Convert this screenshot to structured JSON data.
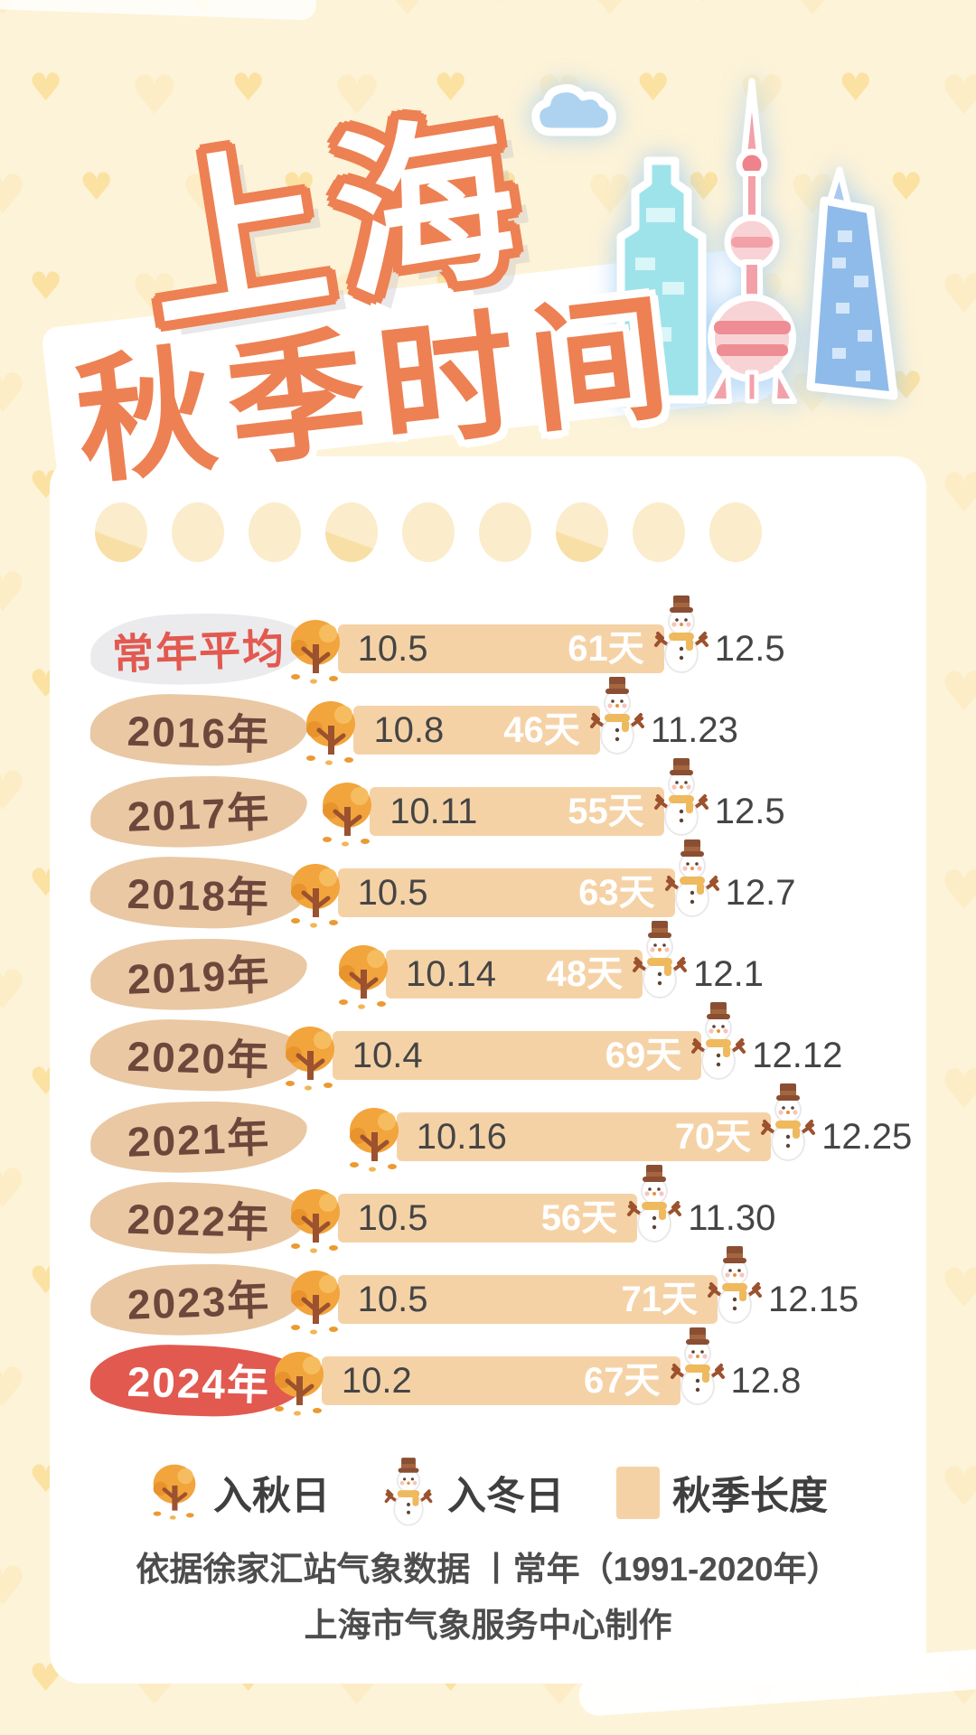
{
  "title": {
    "line1": "上海",
    "line2": "秋季时间"
  },
  "chart_data": {
    "type": "bar",
    "orientation": "horizontal-timeline",
    "date_scale": {
      "unit": "month.day",
      "start": "10.1",
      "end": "12.28"
    },
    "rows": [
      {
        "label": "常年平均",
        "style": "average",
        "autumn_start": "10.5",
        "season_length_days": 61,
        "season_length_label": "61天",
        "winter_start": "12.5"
      },
      {
        "label": "2016年",
        "style": "year",
        "autumn_start": "10.8",
        "season_length_days": 46,
        "season_length_label": "46天",
        "winter_start": "11.23"
      },
      {
        "label": "2017年",
        "style": "year",
        "autumn_start": "10.11",
        "season_length_days": 55,
        "season_length_label": "55天",
        "winter_start": "12.5"
      },
      {
        "label": "2018年",
        "style": "year",
        "autumn_start": "10.5",
        "season_length_days": 63,
        "season_length_label": "63天",
        "winter_start": "12.7"
      },
      {
        "label": "2019年",
        "style": "year",
        "autumn_start": "10.14",
        "season_length_days": 48,
        "season_length_label": "48天",
        "winter_start": "12.1"
      },
      {
        "label": "2020年",
        "style": "year",
        "autumn_start": "10.4",
        "season_length_days": 69,
        "season_length_label": "69天",
        "winter_start": "12.12"
      },
      {
        "label": "2021年",
        "style": "year",
        "autumn_start": "10.16",
        "season_length_days": 70,
        "season_length_label": "70天",
        "winter_start": "12.25"
      },
      {
        "label": "2022年",
        "style": "year",
        "autumn_start": "10.5",
        "season_length_days": 56,
        "season_length_label": "56天",
        "winter_start": "11.30"
      },
      {
        "label": "2023年",
        "style": "year",
        "autumn_start": "10.5",
        "season_length_days": 71,
        "season_length_label": "71天",
        "winter_start": "12.15"
      },
      {
        "label": "2024年",
        "style": "highlight",
        "autumn_start": "10.2",
        "season_length_days": 67,
        "season_length_label": "67天",
        "winter_start": "12.8"
      }
    ]
  },
  "legend": {
    "items": [
      {
        "icon": "autumn-tree-icon",
        "label": "入秋日"
      },
      {
        "icon": "snowman-icon",
        "label": "入冬日"
      },
      {
        "icon": "bar-swatch",
        "label": "秋季长度"
      }
    ]
  },
  "footer": {
    "line1": "依据徐家汇站气象数据 丨常年（1991-2020年）",
    "line2": "上海市气象服务中心制作"
  },
  "colors": {
    "background": "#fdf3d8",
    "heart_dark": "#fbe2a3",
    "heart_light": "#fcedc6",
    "card": "#ffffff",
    "accent_orange": "#ed8153",
    "bar": "#f5d2a6",
    "year_text": "#6e463c",
    "year_badge": "#e9c8a3",
    "average_text": "#e25950",
    "average_badge": "#ebebed",
    "highlight_badge": "#e25950",
    "highlight_text": "#ffffff",
    "number_text": "#454545",
    "day_text": "#ffffff",
    "legend_text": "#3f3f3f",
    "footer_text": "#4d4d4d",
    "tree_canopy": "#f2a53c",
    "tree_trunk": "#9c522f",
    "snow_hat": "#8a4f33",
    "snow_scarf": "#efb95e",
    "sky_cyan": "#9fe3ea",
    "sky_pink": "#f2a1a9",
    "sky_pink_light": "#f8d3d6",
    "sky_blue": "#8fbbea",
    "sky_cloud": "#aed3f1"
  }
}
